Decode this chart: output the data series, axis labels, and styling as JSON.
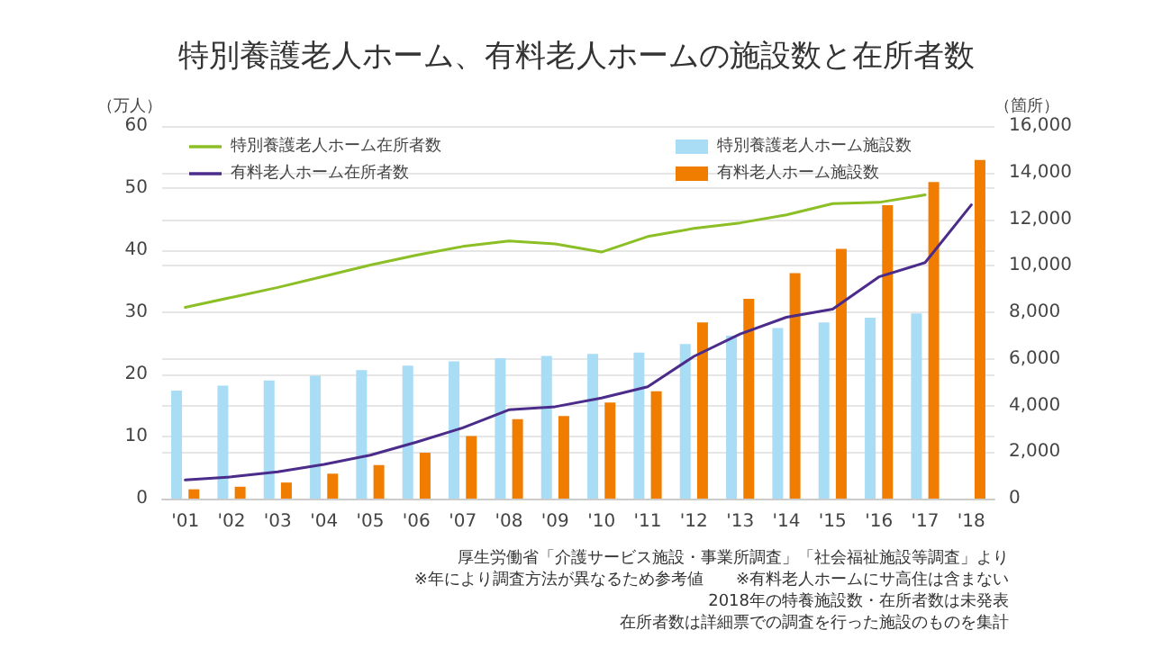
{
  "chart_data": {
    "type": "bar",
    "title": "特別養護老人ホーム、有料老人ホームの施設数と在所者数",
    "ylabel": "（万人）",
    "y2label": "（箇所）",
    "categories": [
      "'01",
      "'02",
      "'03",
      "'04",
      "'05",
      "'06",
      "'07",
      "'08",
      "'09",
      "'10",
      "'11",
      "'12",
      "'13",
      "'14",
      "'15",
      "'16",
      "'17",
      "'18"
    ],
    "series": [
      {
        "name": "特別養護老人ホーム在所者数",
        "type": "line",
        "color": "#8cbf26",
        "values": [
          30.8,
          32.4,
          34.0,
          35.8,
          37.6,
          39.2,
          40.6,
          41.5,
          41.0,
          39.7,
          42.2,
          43.5,
          44.4,
          45.7,
          47.5,
          47.7,
          48.9,
          null
        ]
      },
      {
        "name": "有料老人ホーム在所者数",
        "type": "line",
        "color": "#4b2c8a",
        "values": [
          3.0,
          3.5,
          4.3,
          5.5,
          7.0,
          9.1,
          11.4,
          14.3,
          14.8,
          16.2,
          18.0,
          22.9,
          26.5,
          29.2,
          30.5,
          35.7,
          38.0,
          47.3
        ]
      },
      {
        "name": "特別養護老人ホーム施設数",
        "axis": "y2",
        "color": "#a9dcf5",
        "values": [
          4640,
          4850,
          5070,
          5280,
          5520,
          5710,
          5890,
          6030,
          6130,
          6210,
          6270,
          6640,
          7000,
          7320,
          7570,
          7770,
          7950,
          null
        ]
      },
      {
        "name": "有料老人ホーム施設数",
        "axis": "y2",
        "color": "#f07d00",
        "values": [
          400,
          510,
          690,
          1070,
          1440,
          1970,
          2690,
          3410,
          3550,
          4130,
          4610,
          7570,
          8580,
          9680,
          10720,
          12600,
          13590,
          14540
        ]
      }
    ],
    "ylim": [
      0,
      60
    ],
    "yticks": [
      0,
      10,
      20,
      30,
      40,
      50,
      60
    ],
    "y2lim": [
      0,
      16000
    ],
    "y2ticks": [
      {
        "value": 0,
        "label": "0"
      },
      {
        "value": 2000,
        "label": "2,000"
      },
      {
        "value": 4000,
        "label": "4,000"
      },
      {
        "value": 6000,
        "label": "6,000"
      },
      {
        "value": 8000,
        "label": "8,000"
      },
      {
        "value": 10000,
        "label": "10,000"
      },
      {
        "value": 12000,
        "label": "12,000"
      },
      {
        "value": 14000,
        "label": "14,000"
      },
      {
        "value": 16000,
        "label": "16,000"
      }
    ],
    "grid": "y",
    "legend": "top",
    "marker": "none",
    "line_style": "solid",
    "annotations": [
      "厚生労働省「介護サービス施設・事業所調査」「社会福祉施設等調査」より",
      "※年により調査方法が異なるため参考値　　※有料老人ホームにサ高住は含まない",
      "2018年の特養施設数・在所者数は未発表",
      "在所者数は詳細票での調査を行った施設のものを集計"
    ]
  }
}
